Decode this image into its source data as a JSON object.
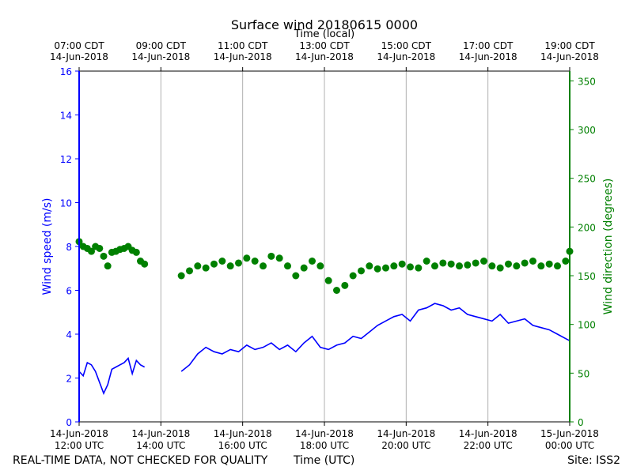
{
  "chart_data": {
    "type": "scatter",
    "title": "Surface wind 20180615 0000",
    "top_axis_label": "Time (local)",
    "xlabel": "Time (UTC)",
    "ylabel_left": "Wind speed (m/s)",
    "ylabel_right": "Wind direction (degrees)",
    "footer_left": "REAL-TIME DATA, NOT CHECKED FOR QUALITY",
    "footer_right": "Site: ISS2",
    "x_range_hours": [
      12,
      24
    ],
    "y_left_range": [
      0,
      16
    ],
    "y_right_range": [
      0,
      360
    ],
    "y_left_ticks": [
      0,
      2,
      4,
      6,
      8,
      10,
      12,
      14,
      16
    ],
    "y_right_ticks": [
      0,
      50,
      100,
      150,
      200,
      250,
      300,
      350
    ],
    "bottom_ticks": [
      {
        "hour": 12,
        "date": "14-Jun-2018",
        "time": "12:00 UTC"
      },
      {
        "hour": 14,
        "date": "14-Jun-2018",
        "time": "14:00 UTC"
      },
      {
        "hour": 16,
        "date": "14-Jun-2018",
        "time": "16:00 UTC"
      },
      {
        "hour": 18,
        "date": "14-Jun-2018",
        "time": "18:00 UTC"
      },
      {
        "hour": 20,
        "date": "14-Jun-2018",
        "time": "20:00 UTC"
      },
      {
        "hour": 22,
        "date": "14-Jun-2018",
        "time": "22:00 UTC"
      },
      {
        "hour": 24,
        "date": "15-Jun-2018",
        "time": "00:00 UTC"
      }
    ],
    "top_ticks": [
      {
        "hour": 12,
        "time": "07:00 CDT",
        "date": "14-Jun-2018"
      },
      {
        "hour": 14,
        "time": "09:00 CDT",
        "date": "14-Jun-2018"
      },
      {
        "hour": 16,
        "time": "11:00 CDT",
        "date": "14-Jun-2018"
      },
      {
        "hour": 18,
        "time": "13:00 CDT",
        "date": "14-Jun-2018"
      },
      {
        "hour": 20,
        "time": "15:00 CDT",
        "date": "14-Jun-2018"
      },
      {
        "hour": 22,
        "time": "17:00 CDT",
        "date": "14-Jun-2018"
      },
      {
        "hour": 24,
        "time": "19:00 CDT",
        "date": "14-Jun-2018"
      }
    ],
    "series": [
      {
        "name": "Wind speed",
        "axis": "left",
        "color": "#0000ff",
        "style": "line",
        "segments": [
          {
            "x": [
              12.0,
              12.1,
              12.2,
              12.3,
              12.4,
              12.5,
              12.6,
              12.7,
              12.8,
              12.9,
              13.0,
              13.1,
              13.2,
              13.3,
              13.4,
              13.5,
              13.6
            ],
            "y": [
              2.3,
              2.1,
              2.7,
              2.6,
              2.3,
              1.8,
              1.3,
              1.7,
              2.4,
              2.5,
              2.6,
              2.7,
              2.9,
              2.2,
              2.8,
              2.6,
              2.5
            ]
          },
          {
            "x": [
              14.5,
              14.7,
              14.9,
              15.1,
              15.3,
              15.5,
              15.7,
              15.9,
              16.1,
              16.3,
              16.5,
              16.7,
              16.9,
              17.1,
              17.3,
              17.5,
              17.7,
              17.9,
              18.1,
              18.3,
              18.5,
              18.7,
              18.9,
              19.1,
              19.3,
              19.5,
              19.7,
              19.9,
              20.1,
              20.3,
              20.5,
              20.7,
              20.9,
              21.1,
              21.3,
              21.5,
              21.7,
              21.9,
              22.1,
              22.3,
              22.5,
              22.7,
              22.9,
              23.1,
              23.3,
              23.5,
              23.7,
              23.9,
              24.0
            ],
            "y": [
              2.3,
              2.6,
              3.1,
              3.4,
              3.2,
              3.1,
              3.3,
              3.2,
              3.5,
              3.3,
              3.4,
              3.6,
              3.3,
              3.5,
              3.2,
              3.6,
              3.9,
              3.4,
              3.3,
              3.5,
              3.6,
              3.9,
              3.8,
              4.1,
              4.4,
              4.6,
              4.8,
              4.9,
              4.6,
              5.1,
              5.2,
              5.4,
              5.3,
              5.1,
              5.2,
              4.9,
              4.8,
              4.7,
              4.6,
              4.9,
              4.5,
              4.6,
              4.7,
              4.4,
              4.3,
              4.2,
              4.0,
              3.8,
              3.7
            ]
          }
        ]
      },
      {
        "name": "Wind direction",
        "axis": "right",
        "color": "#008000",
        "style": "markers",
        "segments": [
          {
            "x": [
              12.0,
              12.1,
              12.2,
              12.3,
              12.4,
              12.5,
              12.6,
              12.7,
              12.8,
              12.9,
              13.0,
              13.1,
              13.2,
              13.3,
              13.4,
              13.5,
              13.6
            ],
            "y": [
              185,
              180,
              178,
              175,
              180,
              178,
              170,
              160,
              174,
              175,
              177,
              178,
              180,
              176,
              174,
              165,
              162
            ]
          },
          {
            "x": [
              14.5,
              14.7,
              14.9,
              15.1,
              15.3,
              15.5,
              15.7,
              15.9,
              16.1,
              16.3,
              16.5,
              16.7,
              16.9,
              17.1,
              17.3,
              17.5,
              17.7,
              17.9,
              18.1,
              18.3,
              18.5,
              18.7,
              18.9,
              19.1,
              19.3,
              19.5,
              19.7,
              19.9,
              20.1,
              20.3,
              20.5,
              20.7,
              20.9,
              21.1,
              21.3,
              21.5,
              21.7,
              21.9,
              22.1,
              22.3,
              22.5,
              22.7,
              22.9,
              23.1,
              23.3,
              23.5,
              23.7,
              23.9,
              24.0
            ],
            "y": [
              150,
              155,
              160,
              158,
              162,
              165,
              160,
              163,
              168,
              165,
              160,
              170,
              168,
              160,
              150,
              158,
              165,
              160,
              145,
              135,
              140,
              150,
              155,
              160,
              157,
              158,
              160,
              162,
              159,
              158,
              165,
              160,
              163,
              162,
              160,
              161,
              163,
              165,
              160,
              158,
              162,
              160,
              163,
              165,
              160,
              162,
              160,
              165,
              175
            ]
          }
        ]
      }
    ]
  }
}
